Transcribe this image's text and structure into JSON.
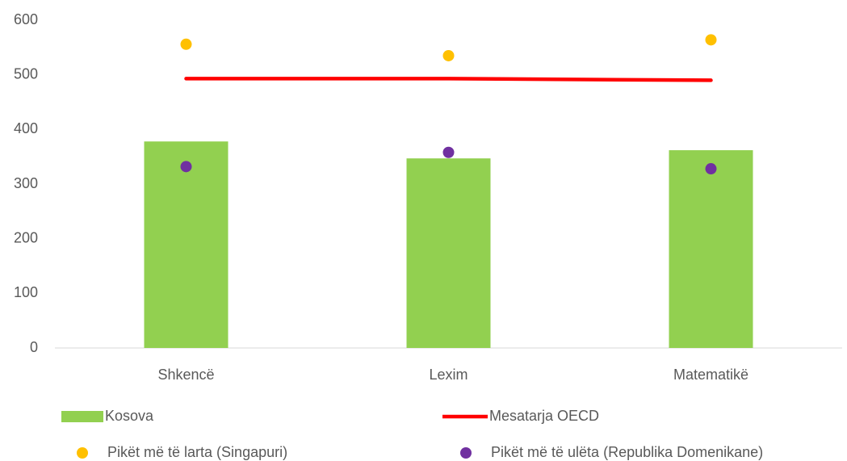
{
  "chart_data": {
    "type": "bar",
    "categories": [
      "Shkencë",
      "Lexim",
      "Matematikë"
    ],
    "series": [
      {
        "name": "Kosova",
        "type": "bar",
        "color": "#92d050",
        "values": [
          378,
          347,
          362
        ]
      },
      {
        "name": "Mesatarja OECD",
        "type": "line",
        "color": "#ff0000",
        "values": [
          493,
          493,
          490
        ]
      },
      {
        "name": "Pikët më të larta (Singapuri)",
        "type": "scatter",
        "color": "#ffc000",
        "values": [
          556,
          535,
          564
        ]
      },
      {
        "name": "Pikët më të ulëta (Republika Domenikane)",
        "type": "scatter",
        "color": "#7030a0",
        "values": [
          332,
          358,
          328
        ]
      }
    ],
    "ylim": [
      0,
      600
    ],
    "yticks": [
      0,
      100,
      200,
      300,
      400,
      500,
      600
    ],
    "grid": false,
    "legend": "bottom"
  }
}
